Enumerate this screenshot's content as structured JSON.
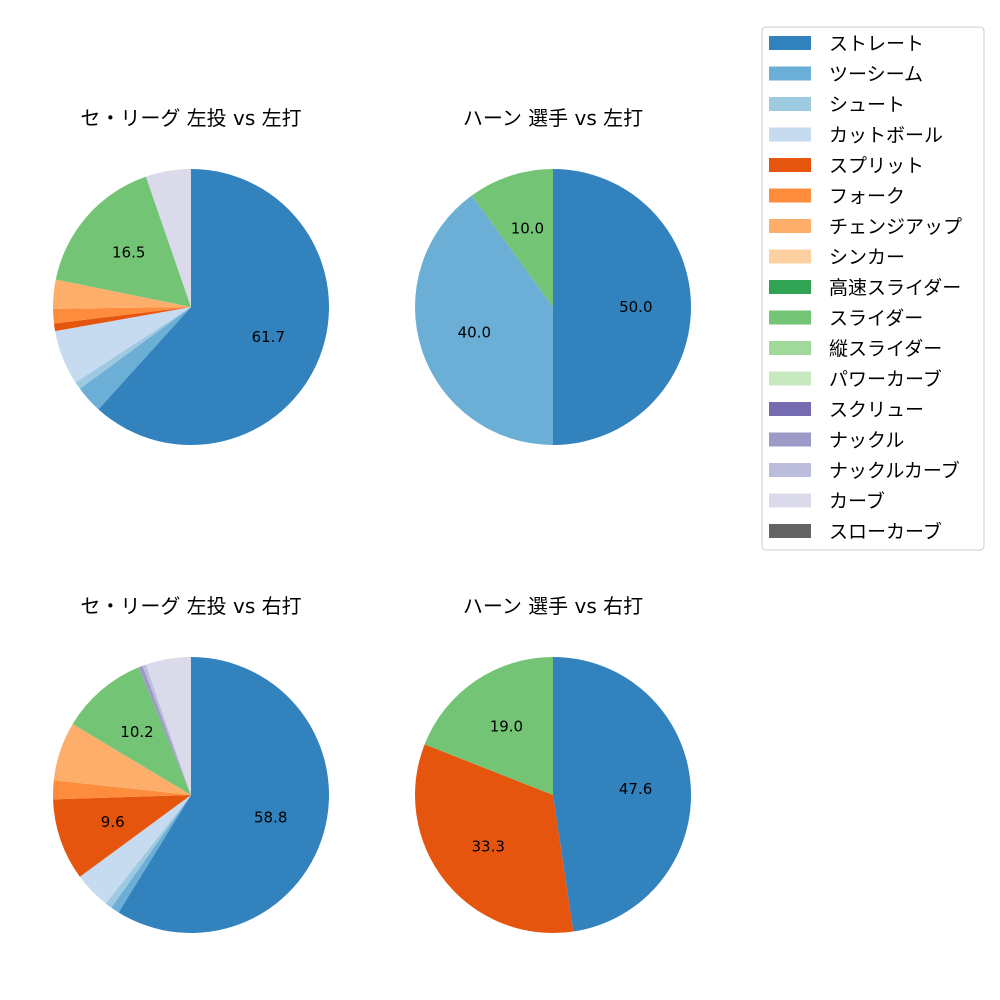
{
  "colors": {
    "ストレート": "#3182bd",
    "ツーシーム": "#6baed6",
    "シュート": "#9ecae1",
    "カットボール": "#c6dbef",
    "スプリット": "#e6550d",
    "フォーク": "#fd8d3c",
    "チェンジアップ": "#fdae6b",
    "シンカー": "#fdd0a2",
    "高速スライダー": "#31a354",
    "スライダー": "#74c476",
    "縦スライダー": "#a1d99b",
    "パワーカーブ": "#c7e9c0",
    "スクリュー": "#756bb1",
    "ナックル": "#9e9ac8",
    "ナックルカーブ": "#bcbddc",
    "カーブ": "#dadaeb",
    "スローカーブ": "#636363"
  },
  "legend": {
    "items": [
      "ストレート",
      "ツーシーム",
      "シュート",
      "カットボール",
      "スプリット",
      "フォーク",
      "チェンジアップ",
      "シンカー",
      "高速スライダー",
      "スライダー",
      "縦スライダー",
      "パワーカーブ",
      "スクリュー",
      "ナックル",
      "ナックルカーブ",
      "カーブ",
      "スローカーブ"
    ]
  },
  "chart_data": [
    {
      "type": "pie",
      "title": "セ・リーグ 左投 vs 左打",
      "slices": [
        {
          "name": "ストレート",
          "value": 61.7,
          "label": "61.7"
        },
        {
          "name": "ツーシーム",
          "value": 3.2,
          "label": ""
        },
        {
          "name": "シュート",
          "value": 0.9,
          "label": ""
        },
        {
          "name": "カットボール",
          "value": 6.4,
          "label": ""
        },
        {
          "name": "スプリット",
          "value": 0.9,
          "label": ""
        },
        {
          "name": "フォーク",
          "value": 1.7,
          "label": ""
        },
        {
          "name": "チェンジアップ",
          "value": 3.4,
          "label": ""
        },
        {
          "name": "スライダー",
          "value": 16.5,
          "label": "16.5"
        },
        {
          "name": "カーブ",
          "value": 5.3,
          "label": ""
        }
      ]
    },
    {
      "type": "pie",
      "title": "ハーン 選手 vs 左打",
      "slices": [
        {
          "name": "ストレート",
          "value": 50.0,
          "label": "50.0"
        },
        {
          "name": "ツーシーム",
          "value": 40.0,
          "label": "40.0"
        },
        {
          "name": "スライダー",
          "value": 10.0,
          "label": "10.0"
        }
      ]
    },
    {
      "type": "pie",
      "title": "セ・リーグ 左投 vs 右打",
      "slices": [
        {
          "name": "ストレート",
          "value": 58.8,
          "label": "58.8"
        },
        {
          "name": "ツーシーム",
          "value": 1.0,
          "label": ""
        },
        {
          "name": "シュート",
          "value": 0.8,
          "label": ""
        },
        {
          "name": "カットボール",
          "value": 4.3,
          "label": ""
        },
        {
          "name": "スプリット",
          "value": 9.6,
          "label": "9.6"
        },
        {
          "name": "フォーク",
          "value": 2.2,
          "label": ""
        },
        {
          "name": "チェンジアップ",
          "value": 6.9,
          "label": ""
        },
        {
          "name": "スライダー",
          "value": 10.2,
          "label": "10.2"
        },
        {
          "name": "ナックル",
          "value": 0.5,
          "label": ""
        },
        {
          "name": "ナックルカーブ",
          "value": 0.4,
          "label": ""
        },
        {
          "name": "カーブ",
          "value": 5.3,
          "label": ""
        }
      ]
    },
    {
      "type": "pie",
      "title": "ハーン 選手 vs 右打",
      "slices": [
        {
          "name": "ストレート",
          "value": 47.6,
          "label": "47.6"
        },
        {
          "name": "スプリット",
          "value": 33.3,
          "label": "33.3"
        },
        {
          "name": "スライダー",
          "value": 19.0,
          "label": "19.0"
        }
      ]
    }
  ]
}
